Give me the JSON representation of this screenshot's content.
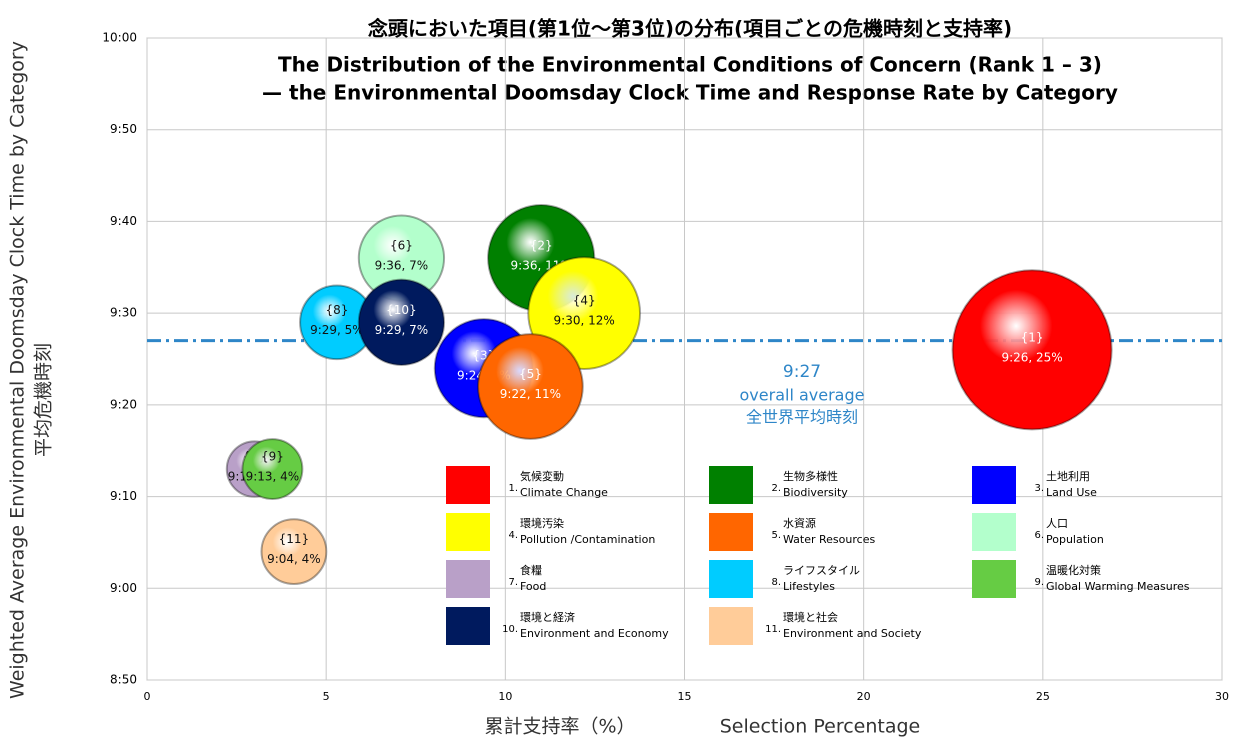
{
  "chart_data": {
    "type": "bubble",
    "title": [
      "念頭においた項目(第1位〜第3位)の分布(項目ごとの危機時刻と支持率)",
      "The Distribution of the Environmental Conditions of Concern (Rank 1 – 3)",
      "— the Environmental Doomsday Clock Time and Response Rate by Category"
    ],
    "x_label": [
      "累計支持率（%）",
      "Selection Percentage"
    ],
    "y_label": [
      "平均危機時刻",
      "Weighted Average Environmental Doomsday Clock Time by Category"
    ],
    "xlim": [
      0,
      30
    ],
    "xticks": [
      0,
      5,
      10,
      15,
      20,
      25,
      30
    ],
    "ylim": [
      530,
      600
    ],
    "yticks": [
      {
        "value": 530,
        "label": "8:50"
      },
      {
        "value": 540,
        "label": "9:00"
      },
      {
        "value": 550,
        "label": "9:10"
      },
      {
        "value": 560,
        "label": "9:20"
      },
      {
        "value": 570,
        "label": "9:30"
      },
      {
        "value": 580,
        "label": "9:40"
      },
      {
        "value": 590,
        "label": "9:50"
      },
      {
        "value": 600,
        "label": "10:00"
      }
    ],
    "grid": true,
    "average": {
      "value": 567,
      "label": "9:27",
      "texts": [
        "overall average",
        "全世界平均時刻"
      ],
      "color": "#2e86c8"
    },
    "series": [
      {
        "number": "1.",
        "name": "気候変動",
        "name_en": "Climate Change",
        "color": "#ff0000",
        "label": "{1}",
        "x": [
          24.7
        ],
        "values": [
          566
        ],
        "value_labels": [
          "9:26, 25%"
        ]
      },
      {
        "number": "2.",
        "name": "生物多様性",
        "name_en": "Biodiversity",
        "color": "#008000",
        "label": "{2}",
        "x": [
          11.0
        ],
        "values": [
          576
        ],
        "value_labels": [
          "9:36, 11%"
        ]
      },
      {
        "number": "3.",
        "name": "土地利用",
        "name_en": "Land Use",
        "color": "#0000ff",
        "label": "{3}",
        "x": [
          9.4
        ],
        "values": [
          564
        ],
        "value_labels": [
          "9:24, 9%"
        ]
      },
      {
        "number": "4.",
        "name": "環境汚染",
        "name_en": "Pollution /Contamination",
        "color": "#ffff00",
        "label": "{4}",
        "x": [
          12.2
        ],
        "values": [
          570
        ],
        "value_labels": [
          "9:30, 12%"
        ]
      },
      {
        "number": "5.",
        "name": "水資源",
        "name_en": "Water Resources",
        "color": "#ff6600",
        "label": "{5}",
        "x": [
          10.7
        ],
        "values": [
          562
        ],
        "value_labels": [
          "9:22, 11%"
        ]
      },
      {
        "number": "6.",
        "name": "人口",
        "name_en": "Population",
        "color": "#b3ffcc",
        "label": "{6}",
        "x": [
          7.1
        ],
        "values": [
          576
        ],
        "value_labels": [
          "9:36, 7%"
        ]
      },
      {
        "number": "7.",
        "name": "食糧",
        "name_en": "Food",
        "color": "#b9a0c8",
        "label": "{7}",
        "x": [
          3.0
        ],
        "values": [
          553
        ],
        "value_labels": [
          "9:13, 3%"
        ]
      },
      {
        "number": "8.",
        "name": "ライフスタイル",
        "name_en": "Lifestyles",
        "color": "#00ccff",
        "label": "{8}",
        "x": [
          5.3
        ],
        "values": [
          569
        ],
        "value_labels": [
          "9:29, 5%"
        ]
      },
      {
        "number": "9.",
        "name": "温暖化対策",
        "name_en": "Global Warming Measures",
        "color": "#66cc44",
        "label": "{9}",
        "x": [
          3.5
        ],
        "values": [
          553
        ],
        "value_labels": [
          "9:13, 4%"
        ]
      },
      {
        "number": "10.",
        "name": "環境と経済",
        "name_en": "Environment and Economy",
        "color": "#001a5e",
        "label": "{10}",
        "x": [
          7.1
        ],
        "values": [
          569
        ],
        "value_labels": [
          "9:29, 7%"
        ]
      },
      {
        "number": "11.",
        "name": "環境と社会",
        "name_en": "Environment and Society",
        "color": "#ffcc99",
        "label": "{11}",
        "x": [
          4.1
        ],
        "values": [
          544
        ],
        "value_labels": [
          "9:04, 4%"
        ]
      }
    ]
  }
}
